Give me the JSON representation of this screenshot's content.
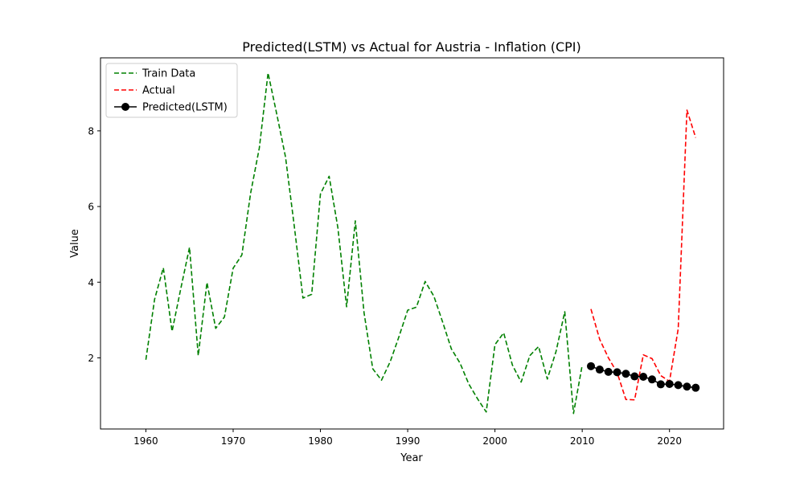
{
  "chart_data": {
    "type": "line",
    "title": "Predicted(LSTM) vs Actual for Austria - Inflation (CPI)",
    "xlabel": "Year",
    "ylabel": "Value",
    "xlim": [
      1954.8,
      2026.2
    ],
    "ylim": [
      0.12,
      9.93
    ],
    "xticks": [
      1960,
      1970,
      1980,
      1990,
      2000,
      2010,
      2020
    ],
    "yticks": [
      2,
      4,
      6,
      8
    ],
    "grid": false,
    "legend_position": "upper-left",
    "series": [
      {
        "name": "Train Data",
        "color": "#008000",
        "style": "dashed",
        "marker": "none",
        "x": [
          1960,
          1961,
          1962,
          1963,
          1964,
          1965,
          1966,
          1967,
          1968,
          1969,
          1970,
          1971,
          1972,
          1973,
          1974,
          1975,
          1976,
          1977,
          1978,
          1979,
          1980,
          1981,
          1982,
          1983,
          1984,
          1985,
          1986,
          1987,
          1988,
          1989,
          1990,
          1991,
          1992,
          1993,
          1994,
          1995,
          1996,
          1997,
          1998,
          1999,
          2000,
          2001,
          2002,
          2003,
          2004,
          2005,
          2006,
          2007,
          2008,
          2009,
          2010
        ],
        "values": [
          1.95,
          3.55,
          4.38,
          2.7,
          3.83,
          4.92,
          2.06,
          3.99,
          2.78,
          3.08,
          4.37,
          4.72,
          6.35,
          7.55,
          9.53,
          8.44,
          7.31,
          5.49,
          3.58,
          3.68,
          6.33,
          6.8,
          5.44,
          3.35,
          5.62,
          3.19,
          1.71,
          1.41,
          1.9,
          2.56,
          3.26,
          3.34,
          4.02,
          3.63,
          2.95,
          2.24,
          1.86,
          1.31,
          0.92,
          0.57,
          2.35,
          2.66,
          1.81,
          1.36,
          2.06,
          2.3,
          1.44,
          2.17,
          3.22,
          0.53,
          1.81
        ]
      },
      {
        "name": "Actual",
        "color": "#ff0000",
        "style": "dashed",
        "marker": "none",
        "x": [
          2011,
          2012,
          2013,
          2014,
          2015,
          2016,
          2017,
          2018,
          2019,
          2020,
          2021,
          2022,
          2023
        ],
        "values": [
          3.29,
          2.49,
          2.0,
          1.61,
          0.9,
          0.89,
          2.08,
          1.98,
          1.53,
          1.38,
          2.77,
          8.55,
          7.82
        ]
      },
      {
        "name": "Predicted(LSTM)",
        "color": "#000000",
        "style": "solid",
        "marker": "circle",
        "x": [
          2011,
          2012,
          2013,
          2014,
          2015,
          2016,
          2017,
          2018,
          2019,
          2020,
          2021,
          2022,
          2023
        ],
        "values": [
          1.78,
          1.69,
          1.63,
          1.62,
          1.58,
          1.51,
          1.5,
          1.43,
          1.3,
          1.31,
          1.28,
          1.24,
          1.21
        ]
      }
    ]
  }
}
